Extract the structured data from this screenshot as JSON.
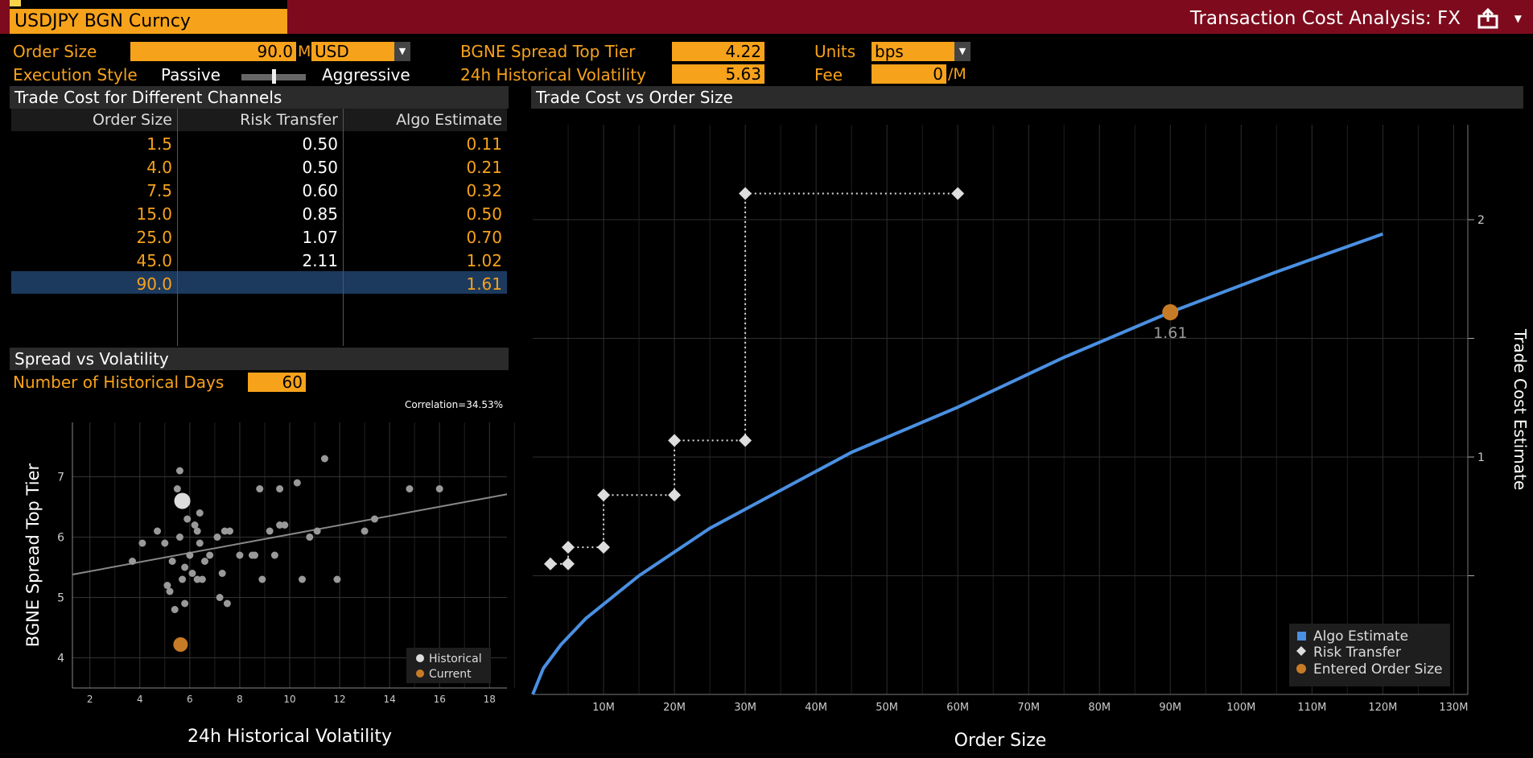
{
  "header": {
    "ticker": "USDJPY BGN Curncy",
    "app_title": "Transaction Cost Analysis: FX"
  },
  "params": {
    "order_size_label": "Order Size",
    "order_size_value": "90.0",
    "order_size_unit": "M",
    "currency": "USD",
    "exec_style_label": "Execution Style",
    "exec_passive": "Passive",
    "exec_aggressive": "Aggressive",
    "spread_label": "BGNE Spread Top Tier",
    "spread_value": "4.22",
    "vol_label": "24h Historical Volatility",
    "vol_value": "5.63",
    "units_label": "Units",
    "units_value": "bps",
    "fee_label": "Fee",
    "fee_value": "0",
    "fee_unit": "/M"
  },
  "channels": {
    "title": "Trade Cost for Different Channels",
    "columns": [
      "Order Size",
      "Risk Transfer",
      "Algo Estimate"
    ],
    "rows": [
      [
        "1.5",
        "0.50",
        "0.11"
      ],
      [
        "4.0",
        "0.50",
        "0.21"
      ],
      [
        "7.5",
        "0.60",
        "0.32"
      ],
      [
        "15.0",
        "0.85",
        "0.50"
      ],
      [
        "25.0",
        "1.07",
        "0.70"
      ],
      [
        "45.0",
        "2.11",
        "1.02"
      ],
      [
        "90.0",
        "",
        "1.61"
      ]
    ]
  },
  "spread_vol": {
    "title": "Spread vs Volatility",
    "days_label": "Number of Historical Days",
    "days_value": "60"
  },
  "main_chart_title": "Trade Cost vs Order Size",
  "colors": {
    "orange": "#f7a21b",
    "header_red": "#7d0b1d",
    "algo_blue": "#4a90e2",
    "selected_row": "#1c3a5e"
  },
  "chart_data": [
    {
      "type": "scatter",
      "title": "",
      "annotation": "Correlation=34.53%",
      "xlabel": "24h Historical Volatility",
      "ylabel": "BGNE Spread Top Tier",
      "xlim": [
        1.3,
        18.7
      ],
      "ylim": [
        3.5,
        7.9
      ],
      "xticks": [
        2,
        4,
        6,
        8,
        10,
        12,
        14,
        16,
        18
      ],
      "yticks": [
        4,
        5,
        6,
        7
      ],
      "legend": [
        "Historical",
        "Current"
      ],
      "legend_position": "bottom-right",
      "grid": true,
      "series": [
        {
          "name": "Historical",
          "points": [
            [
              3.7,
              5.6
            ],
            [
              4.1,
              5.9
            ],
            [
              4.7,
              6.1
            ],
            [
              5.0,
              5.9
            ],
            [
              5.1,
              5.2
            ],
            [
              5.2,
              5.1
            ],
            [
              5.3,
              5.6
            ],
            [
              5.4,
              4.8
            ],
            [
              5.5,
              6.8
            ],
            [
              5.6,
              7.1
            ],
            [
              5.6,
              6.0
            ],
            [
              5.7,
              5.3
            ],
            [
              5.8,
              5.5
            ],
            [
              5.8,
              4.9
            ],
            [
              5.9,
              6.3
            ],
            [
              6.0,
              5.7
            ],
            [
              6.1,
              5.4
            ],
            [
              6.2,
              6.2
            ],
            [
              6.3,
              6.1
            ],
            [
              6.3,
              5.3
            ],
            [
              6.4,
              6.4
            ],
            [
              6.4,
              5.9
            ],
            [
              6.5,
              5.3
            ],
            [
              6.6,
              5.6
            ],
            [
              6.8,
              5.7
            ],
            [
              7.1,
              6.0
            ],
            [
              7.2,
              5.0
            ],
            [
              7.3,
              5.4
            ],
            [
              7.4,
              6.1
            ],
            [
              7.5,
              4.9
            ],
            [
              7.6,
              6.1
            ],
            [
              8.0,
              5.7
            ],
            [
              8.5,
              5.7
            ],
            [
              8.6,
              5.7
            ],
            [
              8.8,
              6.8
            ],
            [
              8.9,
              5.3
            ],
            [
              9.2,
              6.1
            ],
            [
              9.4,
              5.7
            ],
            [
              9.6,
              6.2
            ],
            [
              9.6,
              6.8
            ],
            [
              9.8,
              6.2
            ],
            [
              10.3,
              6.9
            ],
            [
              10.5,
              5.3
            ],
            [
              10.8,
              6.0
            ],
            [
              11.1,
              6.1
            ],
            [
              11.4,
              7.3
            ],
            [
              11.9,
              5.3
            ],
            [
              13.0,
              6.1
            ],
            [
              13.4,
              6.3
            ],
            [
              14.8,
              6.8
            ],
            [
              16.0,
              6.8
            ],
            [
              5.7,
              6.6
            ]
          ]
        },
        {
          "name": "Current",
          "points": [
            [
              5.63,
              4.22
            ]
          ]
        }
      ],
      "trendline": [
        [
          1.3,
          5.38
        ],
        [
          18.7,
          6.71
        ]
      ]
    },
    {
      "type": "line",
      "title": "Trade Cost vs Order Size",
      "xlabel": "Order Size",
      "ylabel": "Trade Cost Estimate",
      "xlim": [
        0,
        132
      ],
      "ylim": [
        0,
        2.4
      ],
      "xticks": [
        "10M",
        "20M",
        "30M",
        "40M",
        "50M",
        "60M",
        "70M",
        "80M",
        "90M",
        "100M",
        "110M",
        "120M",
        "130M"
      ],
      "yticks": [
        1,
        2
      ],
      "legend": [
        "Algo Estimate",
        "Risk Transfer",
        "Entered Order Size"
      ],
      "legend_position": "bottom-right",
      "grid": true,
      "series": [
        {
          "name": "Algo Estimate",
          "x": [
            0,
            1.5,
            4,
            7.5,
            15,
            25,
            30,
            45,
            60,
            75,
            90,
            105,
            120
          ],
          "y": [
            0,
            0.11,
            0.21,
            0.32,
            0.5,
            0.7,
            0.78,
            1.02,
            1.21,
            1.42,
            1.61,
            1.78,
            1.94
          ]
        },
        {
          "name": "Risk Transfer",
          "points": [
            [
              2.5,
              0.55
            ],
            [
              5,
              0.55
            ],
            [
              5,
              0.62
            ],
            [
              10,
              0.62
            ],
            [
              10,
              0.84
            ],
            [
              20,
              0.84
            ],
            [
              20,
              1.07
            ],
            [
              30,
              1.07
            ],
            [
              30,
              2.11
            ],
            [
              60,
              2.11
            ]
          ]
        },
        {
          "name": "Entered Order Size",
          "points": [
            [
              90,
              1.61
            ]
          ],
          "label": "1.61"
        }
      ]
    }
  ]
}
